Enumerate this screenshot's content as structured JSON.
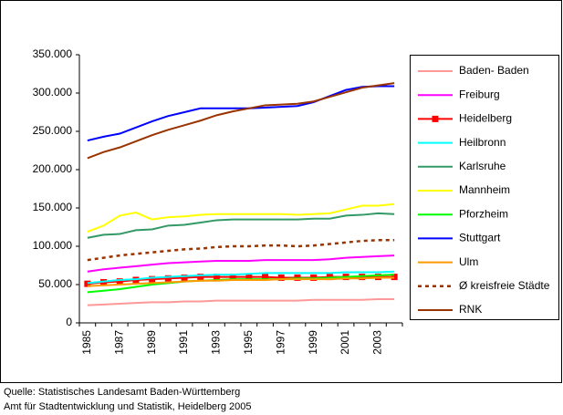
{
  "chart_data": {
    "type": "line",
    "categories": [
      "1985",
      null,
      "1987",
      null,
      "1989",
      null,
      "1991",
      null,
      "1993",
      null,
      "1995",
      null,
      "1997",
      null,
      "1999",
      null,
      "2001",
      null,
      "2003",
      null
    ],
    "ylim": [
      0,
      350000
    ],
    "yticks": [
      0,
      {
        "value": 50000,
        "label": "50.000"
      },
      {
        "value": 100000,
        "label": "100.000"
      },
      {
        "value": 150000,
        "label": "150.000"
      },
      {
        "value": 200000,
        "label": "200.000"
      },
      {
        "value": 250000,
        "label": "250.000"
      },
      {
        "value": 300000,
        "label": "300.000"
      },
      {
        "value": 350000,
        "label": "350.000"
      }
    ],
    "grid": false,
    "legend": "right",
    "series": [
      {
        "name": "Baden- Baden",
        "color": "#ff9999",
        "values": [
          23000,
          24000,
          25000,
          26000,
          27000,
          27000,
          28000,
          28000,
          29000,
          29000,
          29000,
          29000,
          29000,
          29000,
          30000,
          30000,
          30000,
          30000,
          31000,
          31000
        ]
      },
      {
        "name": "Freiburg",
        "color": "#ff00ff",
        "values": [
          67000,
          70000,
          72000,
          74000,
          76000,
          78000,
          79000,
          80000,
          81000,
          81000,
          81000,
          82000,
          82000,
          82000,
          82000,
          83000,
          85000,
          86000,
          87000,
          88000
        ]
      },
      {
        "name": "Heidelberg",
        "color": "#ff0000",
        "marker": "square",
        "values": [
          51000,
          53000,
          54000,
          56000,
          57000,
          58000,
          59000,
          60000,
          60000,
          60000,
          60000,
          60000,
          59000,
          59000,
          59000,
          60000,
          60000,
          60000,
          60000,
          60000
        ]
      },
      {
        "name": "Heilbronn",
        "color": "#00ffff",
        "values": [
          52000,
          54000,
          56000,
          57000,
          59000,
          60000,
          61000,
          62000,
          63000,
          63000,
          64000,
          65000,
          65000,
          65000,
          65000,
          65000,
          66000,
          66000,
          66000,
          67000
        ]
      },
      {
        "name": "Karlsruhe",
        "color": "#339966",
        "values": [
          111000,
          115000,
          116000,
          121000,
          122000,
          127000,
          128000,
          131000,
          134000,
          135000,
          135000,
          135000,
          135000,
          135000,
          136000,
          136000,
          140000,
          141000,
          143000,
          142000
        ]
      },
      {
        "name": "Mannheim",
        "color": "#ffff00",
        "values": [
          119000,
          127000,
          140000,
          144000,
          135000,
          138000,
          139000,
          141000,
          142000,
          142000,
          142000,
          142000,
          142000,
          141000,
          142000,
          143000,
          148000,
          153000,
          153000,
          155000
        ]
      },
      {
        "name": "Pforzheim",
        "color": "#00ff00",
        "values": [
          40000,
          42000,
          44000,
          47000,
          50000,
          52000,
          54000,
          55000,
          56000,
          57000,
          57000,
          57000,
          57000,
          58000,
          58000,
          59000,
          60000,
          61000,
          62000,
          63000
        ]
      },
      {
        "name": "Stuttgart",
        "color": "#0000ff",
        "values": [
          238000,
          243000,
          247000,
          255000,
          263000,
          270000,
          275000,
          280000,
          280000,
          280000,
          280000,
          281000,
          282000,
          283000,
          288000,
          296000,
          304000,
          308000,
          309000,
          309000
        ]
      },
      {
        "name": "Ulm",
        "color": "#ff9900",
        "values": [
          48000,
          49000,
          50000,
          51000,
          52000,
          53000,
          54000,
          55000,
          55000,
          56000,
          56000,
          56000,
          57000,
          57000,
          57000,
          57000,
          58000,
          58000,
          59000,
          59000
        ]
      },
      {
        "name": "Ø kreisfreie Städte",
        "color": "#993300",
        "dash": true,
        "values": [
          82000,
          85000,
          88000,
          90000,
          92000,
          94000,
          96000,
          97000,
          99000,
          100000,
          100000,
          101000,
          101000,
          100000,
          101000,
          103000,
          105000,
          107000,
          108000,
          108000
        ]
      },
      {
        "name": "RNK",
        "color": "#993300",
        "values": [
          215000,
          223000,
          229000,
          237000,
          245000,
          252000,
          258000,
          264000,
          271000,
          276000,
          280000,
          284000,
          285000,
          286000,
          289000,
          295000,
          301000,
          307000,
          310000,
          313000
        ]
      }
    ],
    "source": [
      "Quelle: Statistisches Landesamt Baden-Württemberg",
      "Amt für Stadtentwicklung und Statistik, Heidelberg 2005"
    ]
  }
}
